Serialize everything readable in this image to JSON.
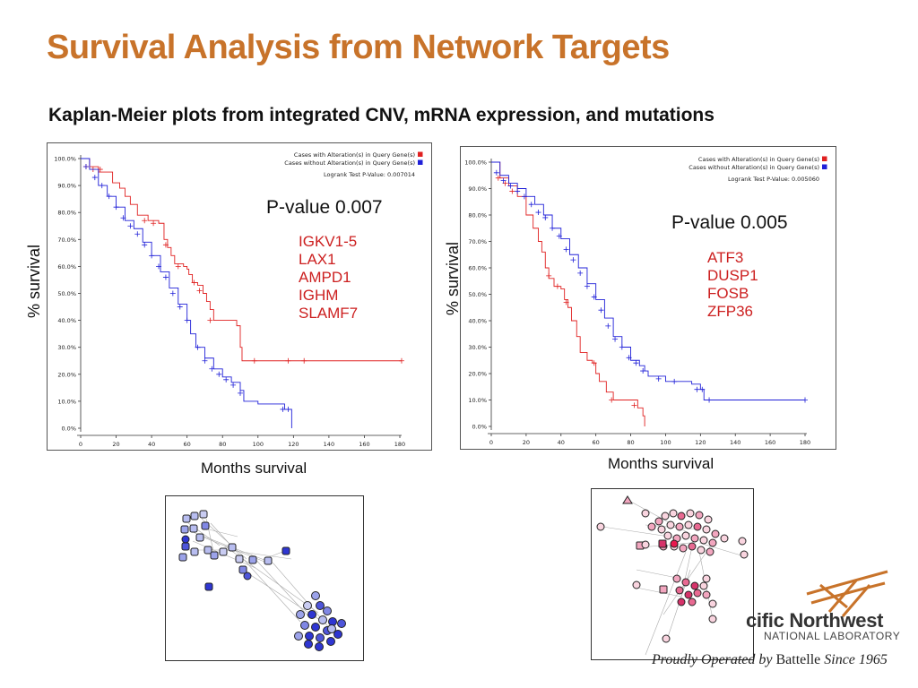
{
  "slide": {
    "title": "Survival Analysis from Network Targets",
    "subtitle": "Kaplan-Meier plots from integrated CNV, mRNA expression, and mutations"
  },
  "colors": {
    "title": "#c8732a",
    "altered": "#e02020",
    "unaltered": "#2020d8",
    "genes": "#cc1f1f"
  },
  "left_plot": {
    "legend": [
      "Cases with Alteration(s) in Query Gene(s)",
      "Cases without Alteration(s) in Query Gene(s)"
    ],
    "logrank": "Logrank Test P-Value: 0.007014",
    "pvalue_label": "P-value 0.007",
    "genes": [
      "IGKV1-5",
      "LAX1",
      "AMPD1",
      "IGHM",
      "SLAMF7"
    ],
    "ylabel": "% survival",
    "xlabel": "Months survival"
  },
  "right_plot": {
    "legend": [
      "Cases with Alteration(s) in Query Gene(s)",
      "Cases without Alteration(s) in Query Gene(s)"
    ],
    "logrank": "Logrank Test P-Value: 0.005060",
    "pvalue_label": "P-value 0.005",
    "genes": [
      "ATF3",
      "DUSP1",
      "FOSB",
      "ZFP36"
    ],
    "ylabel": "% survival",
    "xlabel": "Months survival"
  },
  "logo": {
    "name": "cific Northwest",
    "sub": "NATIONAL LABORATORY",
    "operated_prefix": "Proudly Operated by ",
    "operated_brand": "Battelle",
    "operated_suffix": " Since 1965"
  },
  "chart_data": [
    {
      "type": "line",
      "title": "",
      "xlabel": "Months survival",
      "ylabel": "% survival",
      "xlim": [
        0,
        180
      ],
      "ylim": [
        0,
        100
      ],
      "x_ticks": [
        "0",
        "20",
        "40",
        "60",
        "80",
        "100",
        "120",
        "140",
        "160",
        "180"
      ],
      "y_ticks": [
        "0.0%",
        "10.0%",
        "20.0%",
        "30.0%",
        "40.0%",
        "50.0%",
        "60.0%",
        "70.0%",
        "80.0%",
        "90.0%",
        "100.0%"
      ],
      "grid": false,
      "legend_position": "top-right",
      "series": [
        {
          "name": "Cases with Alteration(s) in Query Gene(s)",
          "color": "#e02020",
          "points": [
            [
              0,
              100
            ],
            [
              5,
              97
            ],
            [
              10,
              95
            ],
            [
              18,
              91
            ],
            [
              22,
              89
            ],
            [
              25,
              86
            ],
            [
              28,
              83
            ],
            [
              32,
              79
            ],
            [
              38,
              77
            ],
            [
              44,
              76
            ],
            [
              47,
              70
            ],
            [
              49,
              67
            ],
            [
              51,
              64
            ],
            [
              53,
              61
            ],
            [
              58,
              60
            ],
            [
              60,
              59
            ],
            [
              61,
              57
            ],
            [
              63,
              54
            ],
            [
              66,
              53
            ],
            [
              69,
              50
            ],
            [
              71,
              47
            ],
            [
              73,
              44
            ],
            [
              75,
              40
            ],
            [
              88,
              38
            ],
            [
              90,
              30
            ],
            [
              91,
              25
            ],
            [
              181,
              25
            ]
          ],
          "censor": [
            [
              3,
              97
            ],
            [
              7,
              96
            ],
            [
              11,
              96
            ],
            [
              36,
              77
            ],
            [
              41,
              76
            ],
            [
              48,
              68
            ],
            [
              55,
              60
            ],
            [
              64,
              54
            ],
            [
              67,
              51
            ],
            [
              73,
              40
            ],
            [
              98,
              25
            ],
            [
              117,
              25
            ],
            [
              126,
              25
            ],
            [
              181,
              25
            ]
          ]
        },
        {
          "name": "Cases without Alteration(s) in Query Gene(s)",
          "color": "#2020d8",
          "points": [
            [
              0,
              100
            ],
            [
              5,
              96
            ],
            [
              10,
              90
            ],
            [
              15,
              86
            ],
            [
              20,
              82
            ],
            [
              25,
              77
            ],
            [
              30,
              74
            ],
            [
              35,
              69
            ],
            [
              40,
              64
            ],
            [
              45,
              58
            ],
            [
              50,
              52
            ],
            [
              55,
              46
            ],
            [
              60,
              40
            ],
            [
              62,
              35
            ],
            [
              65,
              30
            ],
            [
              70,
              26
            ],
            [
              75,
              22
            ],
            [
              80,
              19
            ],
            [
              85,
              17
            ],
            [
              90,
              14
            ],
            [
              92,
              10
            ],
            [
              95,
              10
            ],
            [
              100,
              9
            ],
            [
              110,
              9
            ],
            [
              115,
              7
            ],
            [
              118,
              7
            ],
            [
              119,
              0
            ]
          ],
          "censor": [
            [
              3,
              97
            ],
            [
              8,
              93
            ],
            [
              12,
              90
            ],
            [
              16,
              86
            ],
            [
              20,
              82
            ],
            [
              24,
              78
            ],
            [
              28,
              75
            ],
            [
              32,
              72
            ],
            [
              36,
              68
            ],
            [
              40,
              64
            ],
            [
              44,
              60
            ],
            [
              48,
              56
            ],
            [
              52,
              50
            ],
            [
              56,
              45
            ],
            [
              60,
              40
            ],
            [
              66,
              30
            ],
            [
              70,
              25
            ],
            [
              74,
              22
            ],
            [
              78,
              20
            ],
            [
              82,
              18
            ],
            [
              86,
              16
            ],
            [
              90,
              13
            ],
            [
              114,
              7
            ],
            [
              117,
              7
            ]
          ]
        }
      ]
    },
    {
      "type": "line",
      "title": "",
      "xlabel": "Months survival",
      "ylabel": "% survival",
      "xlim": [
        0,
        180
      ],
      "ylim": [
        0,
        100
      ],
      "x_ticks": [
        "0",
        "20",
        "40",
        "60",
        "80",
        "100",
        "120",
        "140",
        "160",
        "180"
      ],
      "y_ticks": [
        "0.0%",
        "10.0%",
        "20.0%",
        "30.0%",
        "40.0%",
        "50.0%",
        "60.0%",
        "70.0%",
        "80.0%",
        "90.0%",
        "100.0%"
      ],
      "grid": false,
      "legend_position": "top-right",
      "series": [
        {
          "name": "Cases with Alteration(s) in Query Gene(s)",
          "color": "#e02020",
          "points": [
            [
              0,
              100
            ],
            [
              5,
              94
            ],
            [
              10,
              91
            ],
            [
              15,
              87
            ],
            [
              20,
              80
            ],
            [
              24,
              75
            ],
            [
              27,
              70
            ],
            [
              29,
              66
            ],
            [
              31,
              60
            ],
            [
              33,
              56
            ],
            [
              36,
              53
            ],
            [
              40,
              52
            ],
            [
              42,
              48
            ],
            [
              44,
              45
            ],
            [
              46,
              40
            ],
            [
              49,
              34
            ],
            [
              51,
              28
            ],
            [
              55,
              25
            ],
            [
              58,
              24
            ],
            [
              60,
              20
            ],
            [
              62,
              17
            ],
            [
              66,
              13
            ],
            [
              70,
              10
            ],
            [
              80,
              10
            ],
            [
              84,
              7
            ],
            [
              87,
              4
            ],
            [
              88,
              0
            ]
          ],
          "censor": [
            [
              4,
              94
            ],
            [
              8,
              92
            ],
            [
              12,
              89
            ],
            [
              33,
              57
            ],
            [
              38,
              53
            ],
            [
              43,
              47
            ],
            [
              59,
              24
            ],
            [
              69,
              10
            ],
            [
              82,
              8
            ]
          ]
        },
        {
          "name": "Cases without Alteration(s) in Query Gene(s)",
          "color": "#2020d8",
          "points": [
            [
              0,
              100
            ],
            [
              5,
              95
            ],
            [
              10,
              92
            ],
            [
              15,
              90
            ],
            [
              20,
              87
            ],
            [
              25,
              84
            ],
            [
              30,
              80
            ],
            [
              35,
              75
            ],
            [
              40,
              71
            ],
            [
              45,
              65
            ],
            [
              50,
              60
            ],
            [
              55,
              54
            ],
            [
              60,
              48
            ],
            [
              65,
              41
            ],
            [
              70,
              34
            ],
            [
              75,
              30
            ],
            [
              80,
              25
            ],
            [
              85,
              23
            ],
            [
              88,
              21
            ],
            [
              90,
              19
            ],
            [
              100,
              17
            ],
            [
              110,
              17
            ],
            [
              115,
              16
            ],
            [
              120,
              14
            ],
            [
              122,
              10
            ],
            [
              180,
              10
            ]
          ],
          "censor": [
            [
              3,
              96
            ],
            [
              7,
              93
            ],
            [
              11,
              91
            ],
            [
              15,
              89
            ],
            [
              19,
              87
            ],
            [
              23,
              84
            ],
            [
              27,
              81
            ],
            [
              31,
              79
            ],
            [
              35,
              75
            ],
            [
              39,
              72
            ],
            [
              43,
              67
            ],
            [
              47,
              63
            ],
            [
              51,
              58
            ],
            [
              55,
              53
            ],
            [
              59,
              49
            ],
            [
              63,
              44
            ],
            [
              67,
              38
            ],
            [
              71,
              33
            ],
            [
              75,
              30
            ],
            [
              79,
              26
            ],
            [
              83,
              24
            ],
            [
              87,
              21
            ],
            [
              96,
              18
            ],
            [
              105,
              17
            ],
            [
              118,
              14
            ],
            [
              121,
              14
            ],
            [
              125,
              10
            ],
            [
              180,
              10
            ]
          ]
        }
      ]
    }
  ]
}
